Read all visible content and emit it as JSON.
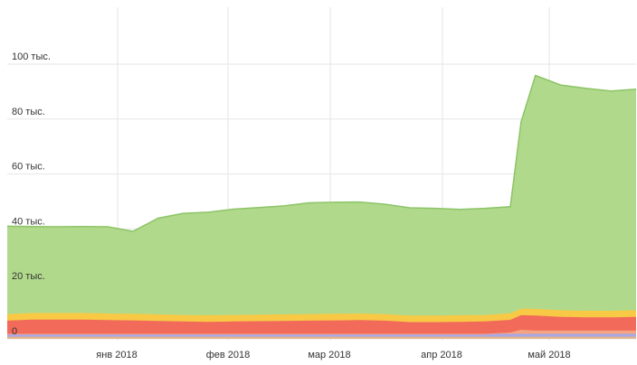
{
  "chart_data": {
    "type": "area",
    "stacked": true,
    "grid": true,
    "x_tick_labels": [
      "янв 2018",
      "фев 2018",
      "мар 2018",
      "апр 2018",
      "май 2018"
    ],
    "y_tick_labels": [
      "0",
      "20 тыс.",
      "40 тыс.",
      "60 тыс.",
      "80 тыс.",
      "100 тыс."
    ],
    "ylim": [
      0,
      120000
    ],
    "x": [
      "2017-12-04",
      "2017-12-11",
      "2017-12-18",
      "2017-12-25",
      "2018-01-01",
      "2018-01-08",
      "2018-01-15",
      "2018-01-22",
      "2018-01-29",
      "2018-02-05",
      "2018-02-12",
      "2018-02-19",
      "2018-02-26",
      "2018-03-05",
      "2018-03-12",
      "2018-03-19",
      "2018-03-26",
      "2018-04-02",
      "2018-04-09",
      "2018-04-16",
      "2018-04-23",
      "2018-04-26",
      "2018-04-30",
      "2018-05-07",
      "2018-05-14",
      "2018-05-21",
      "2018-05-28"
    ],
    "series": [
      {
        "color": "#e0b48a",
        "values": [
          800,
          800,
          800,
          800,
          800,
          800,
          800,
          800,
          800,
          800,
          800,
          800,
          800,
          800,
          800,
          800,
          800,
          800,
          800,
          800,
          800,
          800,
          800,
          800,
          800,
          800,
          800
        ]
      },
      {
        "color": "#a8a8e8",
        "values": [
          1000,
          1000,
          1000,
          1000,
          1000,
          1000,
          1000,
          1000,
          1000,
          1000,
          1000,
          1000,
          1000,
          1000,
          1000,
          1000,
          1000,
          1000,
          1000,
          1000,
          1000,
          1000,
          1000,
          1000,
          1000,
          1000,
          1000
        ]
      },
      {
        "color": "#f5a380",
        "values": [
          0,
          0,
          0,
          0,
          0,
          0,
          0,
          0,
          0,
          0,
          0,
          0,
          0,
          0,
          0,
          0,
          0,
          0,
          0,
          0,
          500,
          1500,
          1200,
          1200,
          1200,
          1200,
          1200
        ]
      },
      {
        "color": "#f26b5a",
        "values": [
          4800,
          5200,
          5200,
          5200,
          5000,
          4900,
          4700,
          4500,
          4400,
          4500,
          4600,
          4700,
          4800,
          4900,
          5000,
          4800,
          4300,
          4300,
          4400,
          4500,
          4600,
          5300,
          5500,
          5000,
          4800,
          4800,
          5000
        ]
      },
      {
        "color": "#f7c945",
        "values": [
          2400,
          2400,
          2400,
          2400,
          2400,
          2400,
          2400,
          2400,
          2400,
          2400,
          2400,
          2400,
          2400,
          2400,
          2400,
          2400,
          2400,
          2400,
          2400,
          2400,
          2400,
          2400,
          2400,
          2400,
          2400,
          2400,
          2400
        ]
      },
      {
        "color": "#b0d98c",
        "values": [
          32000,
          31500,
          31400,
          31500,
          31600,
          30000,
          35000,
          37000,
          37500,
          38500,
          39000,
          39500,
          40500,
          40600,
          40600,
          40000,
          39200,
          39000,
          38500,
          38800,
          38800,
          68000,
          85000,
          82000,
          81000,
          80000,
          80500
        ]
      }
    ]
  }
}
